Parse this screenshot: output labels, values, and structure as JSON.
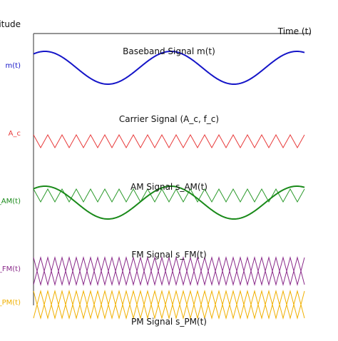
{
  "axes": {
    "y_label": "Amplitude",
    "x_label": "Time (t)"
  },
  "colors": {
    "axis": "#555555",
    "text": "#111111",
    "baseband": "#1515c8",
    "carrier": "#e83b3b",
    "am": "#1a8a1a",
    "am_carrier": "#2c9a2c",
    "fm": "#8a2a8a",
    "pm": "#f0b000"
  },
  "signals": [
    {
      "id": "baseband",
      "side_label": "m(t)",
      "title": "Baseband Signal m(t)"
    },
    {
      "id": "carrier",
      "side_label": "A_c",
      "title": "Carrier Signal (A_c, f_c)"
    },
    {
      "id": "am",
      "side_label": "s_AM(t)",
      "title": "AM Signal s_AM(t)"
    },
    {
      "id": "fm",
      "side_label": "s_FM(t)",
      "title": "FM Signal s_FM(t)"
    },
    {
      "id": "pm",
      "side_label": "s_PM(t)",
      "title": "PM Signal s_PM(t)"
    }
  ]
}
